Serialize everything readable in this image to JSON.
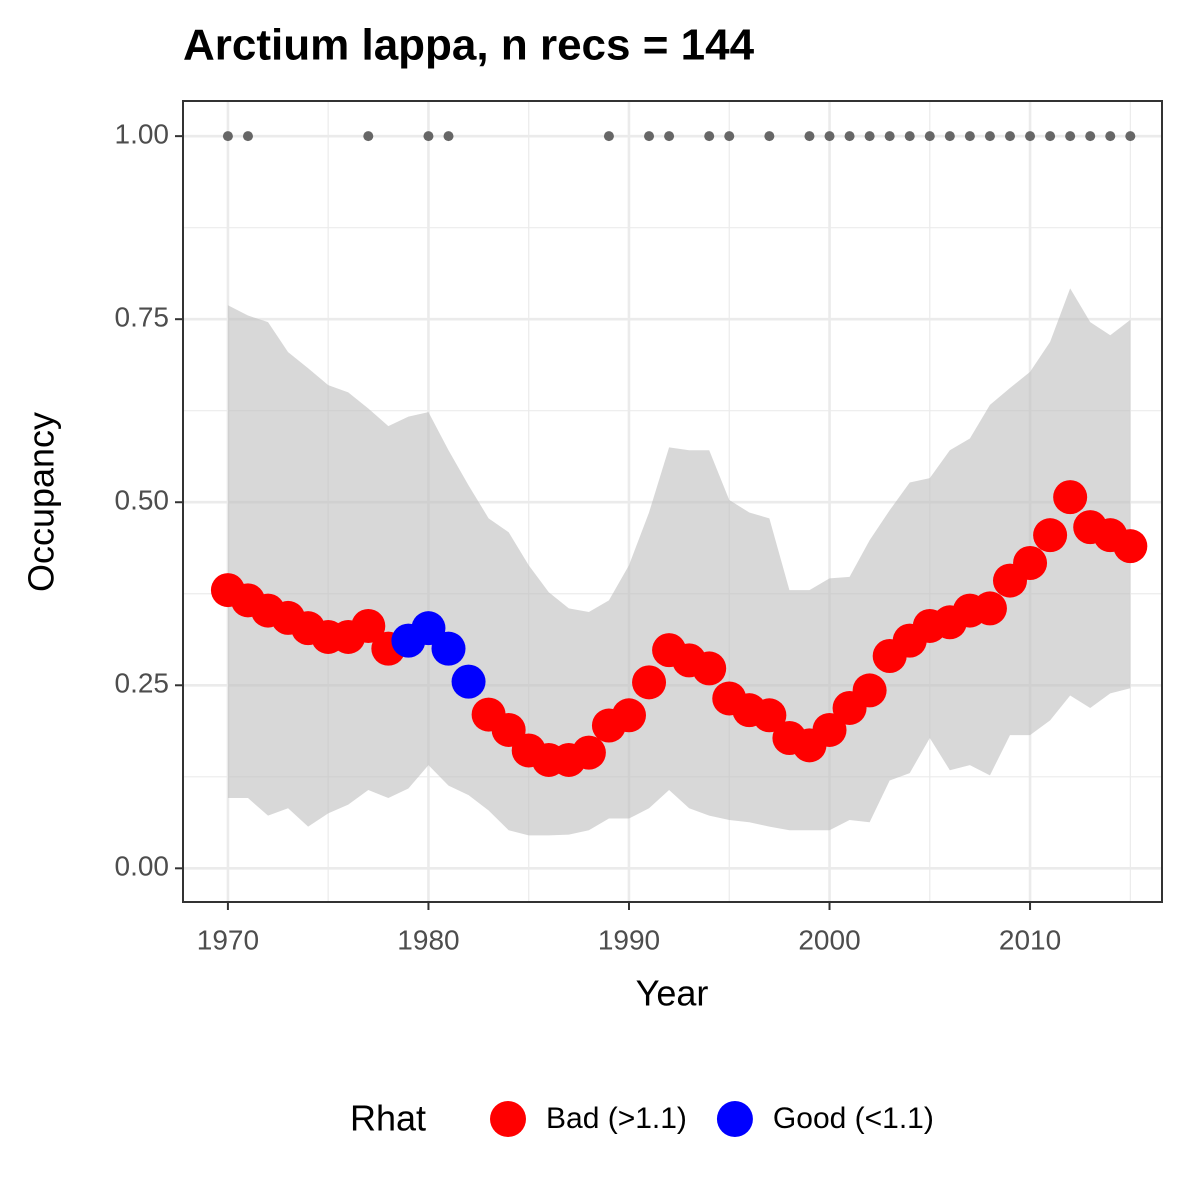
{
  "chart_data": {
    "type": "scatter",
    "title": "Arctium lappa, n recs = 144",
    "xlabel": "Year",
    "ylabel": "Occupancy",
    "legend_title": "Rhat",
    "legend": "bottom",
    "grid": true,
    "x": [
      1970,
      1971,
      1972,
      1973,
      1974,
      1975,
      1976,
      1977,
      1978,
      1979,
      1980,
      1981,
      1982,
      1983,
      1984,
      1985,
      1986,
      1987,
      1988,
      1989,
      1990,
      1991,
      1992,
      1993,
      1994,
      1995,
      1996,
      1997,
      1998,
      1999,
      2000,
      2001,
      2002,
      2003,
      2004,
      2005,
      2006,
      2007,
      2008,
      2009,
      2010,
      2011,
      2012,
      2013,
      2014,
      2015
    ],
    "series": [
      {
        "name": "Bad (>1.1)",
        "color": "#ff0000",
        "values": [
          0.38,
          0.366,
          0.352,
          0.342,
          0.328,
          0.316,
          0.316,
          0.331,
          0.3,
          null,
          null,
          null,
          null,
          0.21,
          0.189,
          0.161,
          0.148,
          0.148,
          0.158,
          0.195,
          0.209,
          0.254,
          0.298,
          0.284,
          0.273,
          0.232,
          0.216,
          0.209,
          0.178,
          0.168,
          0.189,
          0.219,
          0.243,
          0.29,
          0.311,
          0.331,
          0.336,
          0.352,
          0.355,
          0.393,
          0.417,
          0.455,
          0.507,
          0.466,
          0.455,
          0.44
        ]
      },
      {
        "name": "Good (<1.1)",
        "color": "#0000ff",
        "values": [
          null,
          null,
          null,
          null,
          null,
          null,
          null,
          null,
          null,
          0.311,
          0.328,
          0.3,
          0.255,
          null,
          null,
          null,
          null,
          null,
          null,
          null,
          null,
          null,
          null,
          null,
          null,
          null,
          null,
          null,
          null,
          null,
          null,
          null,
          null,
          null,
          null,
          null,
          null,
          null,
          null,
          null,
          null,
          null,
          null,
          null,
          null,
          null
        ]
      }
    ],
    "ci_color": "#bebebe",
    "ci_upper": [
      0.769,
      0.755,
      0.746,
      0.705,
      0.683,
      0.66,
      0.65,
      0.628,
      0.604,
      0.617,
      0.623,
      0.571,
      0.523,
      0.478,
      0.459,
      0.414,
      0.377,
      0.355,
      0.35,
      0.366,
      0.414,
      0.486,
      0.575,
      0.571,
      0.571,
      0.503,
      0.486,
      0.478,
      0.38,
      0.38,
      0.396,
      0.398,
      0.448,
      0.489,
      0.527,
      0.533,
      0.571,
      0.587,
      0.633,
      0.656,
      0.678,
      0.719,
      0.792,
      0.746,
      0.728,
      0.749
    ],
    "ci_lower": [
      0.096,
      0.096,
      0.072,
      0.082,
      0.057,
      0.075,
      0.087,
      0.107,
      0.096,
      0.109,
      0.141,
      0.113,
      0.1,
      0.079,
      0.052,
      0.045,
      0.045,
      0.046,
      0.052,
      0.068,
      0.068,
      0.082,
      0.107,
      0.082,
      0.072,
      0.066,
      0.063,
      0.057,
      0.052,
      0.052,
      0.052,
      0.066,
      0.063,
      0.12,
      0.13,
      0.178,
      0.134,
      0.141,
      0.127,
      0.182,
      0.182,
      0.202,
      0.236,
      0.219,
      0.239,
      0.246
    ],
    "detections": {
      "color": "#666666",
      "x": [
        1970,
        1971,
        1977,
        1980,
        1981,
        1989,
        1991,
        1992,
        1994,
        1995,
        1997,
        1999,
        2000,
        2001,
        2002,
        2003,
        2004,
        2005,
        2006,
        2007,
        2008,
        2009,
        2010,
        2011,
        2012,
        2013,
        2014,
        2015
      ],
      "values": [
        1,
        1,
        1,
        1,
        1,
        1,
        1,
        1,
        1,
        1,
        1,
        1,
        1,
        1,
        1,
        1,
        1,
        1,
        1,
        1,
        1,
        1,
        1,
        1,
        1,
        1,
        1,
        1
      ]
    },
    "xlim": [
      1967.76,
      2016.58
    ],
    "ylim": [
      -0.046,
      1.048
    ],
    "xticks": [
      1970,
      1980,
      1990,
      2000,
      2010
    ],
    "yticks": [
      {
        "value": 0,
        "label": "0.00"
      },
      {
        "value": 0.25,
        "label": "0.25"
      },
      {
        "value": 0.5,
        "label": "0.50"
      },
      {
        "value": 0.75,
        "label": "0.75"
      },
      {
        "value": 1,
        "label": "1.00"
      }
    ]
  }
}
